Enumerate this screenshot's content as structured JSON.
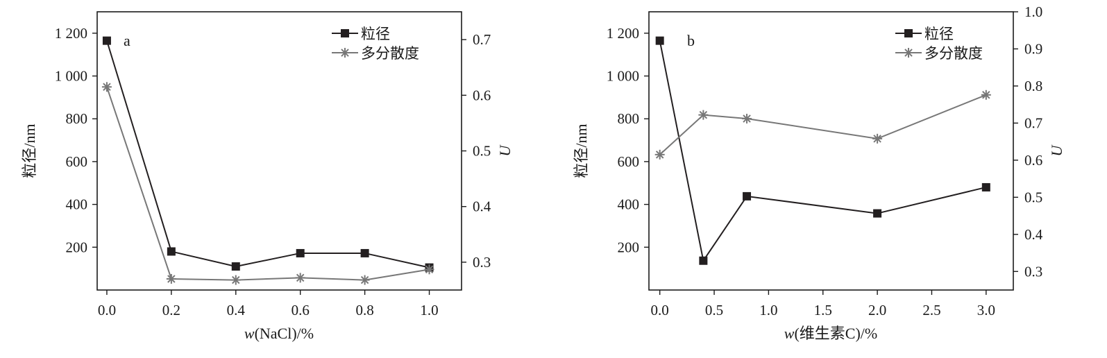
{
  "chart_data": [
    {
      "type": "line",
      "panel_label": "a",
      "x": [
        0.0,
        0.2,
        0.4,
        0.6,
        0.8,
        1.0
      ],
      "xticks": [
        "0.0",
        "0.2",
        "0.4",
        "0.6",
        "0.8",
        "1.0"
      ],
      "xlim": [
        -0.03,
        1.1
      ],
      "xlabel_italic": "w",
      "xlabel_rest": "(NaCl)/%",
      "ylabel": "粒径/nm",
      "ylim": [
        0,
        1300
      ],
      "yticks": [
        "200",
        "400",
        "600",
        "800",
        "1 000",
        "1 200"
      ],
      "ytick_values": [
        200,
        400,
        600,
        800,
        1000,
        1200
      ],
      "y2label": "U",
      "y2lim": [
        0.25,
        0.75
      ],
      "y2ticks": [
        "0.3",
        "0.4",
        "0.5",
        "0.6",
        "0.7"
      ],
      "y2tick_values": [
        0.3,
        0.4,
        0.5,
        0.6,
        0.7
      ],
      "grid": false,
      "legend_position": "top-right",
      "series": [
        {
          "name": "粒径",
          "axis": "left",
          "marker": "square",
          "color": "#231f20",
          "values": [
            1165,
            180,
            110,
            172,
            172,
            105
          ]
        },
        {
          "name": "多分散度",
          "axis": "right",
          "marker": "asterisk",
          "color": "#777777",
          "values": [
            0.615,
            0.27,
            0.268,
            0.272,
            0.268,
            0.287
          ]
        }
      ]
    },
    {
      "type": "line",
      "panel_label": "b",
      "x": [
        0.0,
        0.4,
        0.8,
        2.0,
        3.0
      ],
      "xticks": [
        "0.0",
        "0.5",
        "1.0",
        "1.5",
        "2.0",
        "2.5",
        "3.0"
      ],
      "xtick_values": [
        0.0,
        0.5,
        1.0,
        1.5,
        2.0,
        2.5,
        3.0
      ],
      "xlim": [
        -0.1,
        3.25
      ],
      "xlabel_italic": "w",
      "xlabel_rest": "(维生素C)/%",
      "ylabel": "粒径/nm",
      "ylim": [
        0,
        1300
      ],
      "yticks": [
        "200",
        "400",
        "600",
        "800",
        "1 000",
        "1 200"
      ],
      "ytick_values": [
        200,
        400,
        600,
        800,
        1000,
        1200
      ],
      "y2label": "U",
      "y2lim": [
        0.25,
        1.0
      ],
      "y2ticks": [
        "0.3",
        "0.4",
        "0.5",
        "0.6",
        "0.7",
        "0.8",
        "0.9",
        "1.0"
      ],
      "y2tick_values": [
        0.3,
        0.4,
        0.5,
        0.6,
        0.7,
        0.8,
        0.9,
        1.0
      ],
      "grid": false,
      "legend_position": "top-right",
      "series": [
        {
          "name": "粒径",
          "axis": "left",
          "marker": "square",
          "color": "#231f20",
          "values": [
            1165,
            137,
            438,
            358,
            480
          ]
        },
        {
          "name": "多分散度",
          "axis": "right",
          "marker": "asterisk",
          "color": "#777777",
          "values": [
            0.615,
            0.722,
            0.712,
            0.658,
            0.776
          ]
        }
      ]
    }
  ]
}
